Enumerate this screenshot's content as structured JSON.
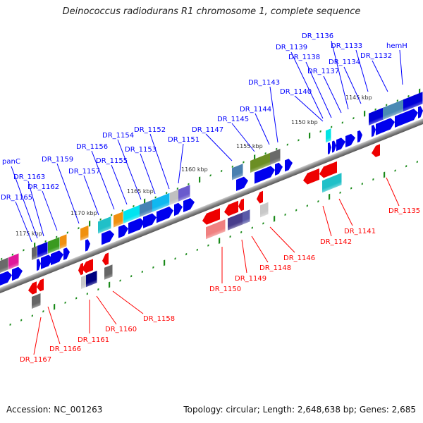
{
  "title": "Deinococcus radiodurans R1 chromosome 1, complete sequence",
  "footer": {
    "accession": "Accession: NC_001263",
    "topology": "Topology: circular; Length: 2,648,638 bp; Genes: 2,685"
  },
  "colors": {
    "forward_label": "#0000ff",
    "reverse_label": "#ff0000",
    "ruler": "#1a8a1a",
    "backbone": "#888888"
  },
  "ruler_labels": [
    "1145 kbp",
    "1150 kbp",
    "1155 kbp",
    "1160 kbp",
    "1165 kbp",
    "1170 kbp",
    "1175 kbp"
  ],
  "forward_genes": [
    "DR_1136",
    "DR_1133",
    "hemH",
    "DR_1139",
    "DR_1138",
    "DR_1132",
    "DR_1134",
    "DR_1137",
    "DR_1143",
    "DR_1140",
    "DR_1144",
    "DR_1145",
    "DR_1147",
    "DR_1152",
    "DR_1154",
    "DR_1151",
    "DR_1156",
    "DR_1153",
    "DR_1155",
    "DR_1159",
    "DR_1157",
    "panC",
    "DR_1163",
    "DR_1162",
    "DR_1165"
  ],
  "reverse_genes": [
    "DR_1135",
    "DR_1141",
    "DR_1142",
    "DR_1146",
    "DR_1148",
    "DR_1149",
    "DR_1150",
    "DR_1158",
    "DR_1160",
    "DR_1161",
    "DR_1166",
    "DR_1167"
  ]
}
